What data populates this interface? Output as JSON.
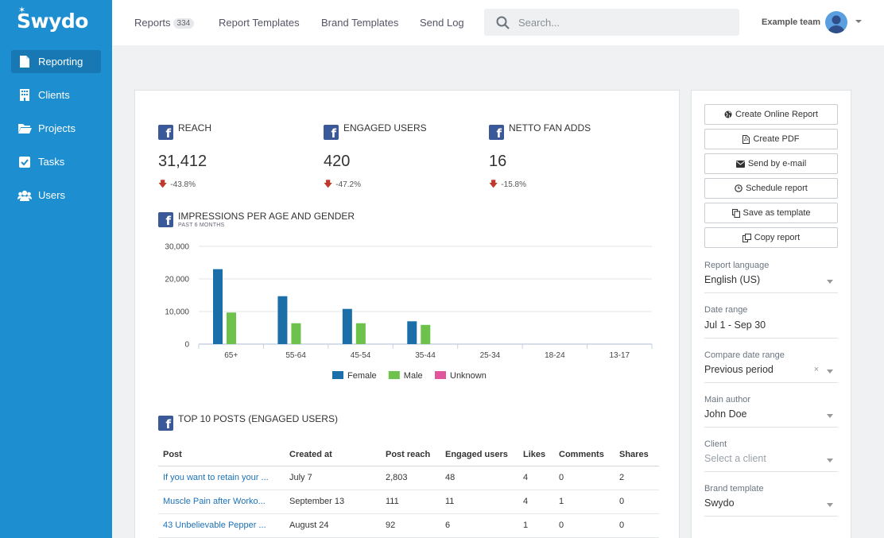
{
  "app": {
    "logo_text": "Swydo"
  },
  "sidebar": {
    "items": [
      {
        "label": "Reporting",
        "icon": "file-icon",
        "active": true
      },
      {
        "label": "Clients",
        "icon": "building-icon",
        "active": false
      },
      {
        "label": "Projects",
        "icon": "folder-icon",
        "active": false
      },
      {
        "label": "Tasks",
        "icon": "checkbox-icon",
        "active": false
      },
      {
        "label": "Users",
        "icon": "users-icon",
        "active": false
      }
    ]
  },
  "topbar": {
    "tabs": [
      {
        "label": "Reports",
        "count": "334"
      },
      {
        "label": "Report Templates"
      },
      {
        "label": "Brand Templates"
      },
      {
        "label": "Send Log"
      }
    ],
    "search_placeholder": "Search...",
    "team_name": "Example team"
  },
  "metrics": [
    {
      "title": "REACH",
      "value": "31,412",
      "change": "-43.8%"
    },
    {
      "title": "ENGAGED USERS",
      "value": "420",
      "change": "-47.2%"
    },
    {
      "title": "NETTO FAN ADDS",
      "value": "16",
      "change": "-15.8%"
    }
  ],
  "chart_section": {
    "title": "IMPRESSIONS PER AGE AND GENDER",
    "subtitle": "PAST 6 MONTHS"
  },
  "chart_data": {
    "type": "bar",
    "categories": [
      "65+",
      "55-64",
      "45-54",
      "35-44",
      "25-34",
      "18-24",
      "13-17"
    ],
    "series": [
      {
        "name": "Female",
        "color": "#1a6fa8",
        "values": [
          23000,
          14700,
          10800,
          7000,
          0,
          0,
          0
        ]
      },
      {
        "name": "Male",
        "color": "#6cc24a",
        "values": [
          9700,
          6400,
          6400,
          5900,
          0,
          0,
          0
        ]
      },
      {
        "name": "Unknown",
        "color": "#e0559c",
        "values": [
          0,
          0,
          0,
          0,
          0,
          0,
          0
        ]
      }
    ],
    "yticks": [
      "30,000",
      "20,000",
      "10,000",
      "0"
    ],
    "ylim": [
      0,
      30000
    ],
    "grid": true,
    "legend": "bottom"
  },
  "posts_section": {
    "title": "TOP 10 POSTS (ENGAGED USERS)",
    "columns": [
      "Post",
      "Created at",
      "Post reach",
      "Engaged users",
      "Likes",
      "Comments",
      "Shares"
    ],
    "rows": [
      [
        "If you want to retain your ...",
        "July 7",
        "2,803",
        "48",
        "4",
        "0",
        "2"
      ],
      [
        "Muscle Pain after Worko...",
        "September 13",
        "111",
        "11",
        "4",
        "1",
        "0"
      ],
      [
        "43 Unbelievable Pepper ...",
        "August 24",
        "92",
        "6",
        "1",
        "0",
        "0"
      ]
    ]
  },
  "panel": {
    "buttons": [
      {
        "label": "Create Online Report",
        "icon": "globe-icon"
      },
      {
        "label": "Create PDF",
        "icon": "pdf-icon"
      },
      {
        "label": "Send by e-mail",
        "icon": "envelope-icon"
      },
      {
        "label": "Schedule report",
        "icon": "clock-icon"
      },
      {
        "label": "Save as template",
        "icon": "copy-icon"
      },
      {
        "label": "Copy report",
        "icon": "duplicate-icon"
      }
    ],
    "fields": [
      {
        "label": "Report language",
        "value": "English (US)"
      },
      {
        "label": "Date range",
        "value": "Jul 1 - Sep 30"
      },
      {
        "label": "Compare date range",
        "value": "Previous period",
        "clear": "×"
      },
      {
        "label": "Main author",
        "value": "John Doe"
      },
      {
        "label": "Client",
        "value": "Select a client"
      },
      {
        "label": "Brand template",
        "value": "Swydo"
      }
    ]
  }
}
